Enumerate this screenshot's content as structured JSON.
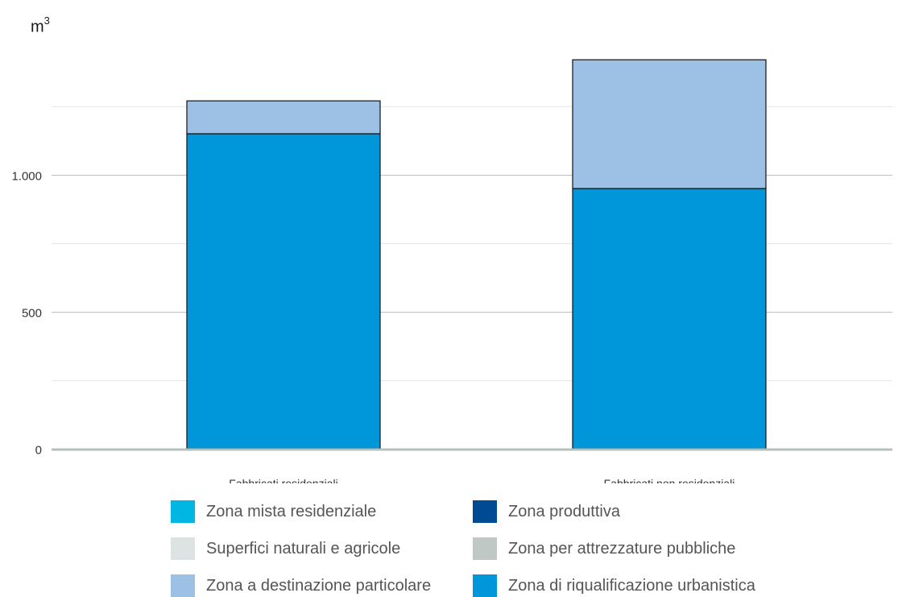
{
  "unit": {
    "base": "m",
    "exponent": "3"
  },
  "chart_data": {
    "type": "bar",
    "stacked": true,
    "title": "",
    "xlabel": "",
    "ylabel": "m3",
    "ylim": [
      0,
      1500
    ],
    "yticks": [
      0,
      500,
      1000
    ],
    "ytick_labels": [
      "0",
      "500",
      "1.000"
    ],
    "minor_gridlines": [
      250,
      750,
      1250
    ],
    "grid": true,
    "legend_position": "bottom",
    "categories": [
      "Fabbricati residenziali",
      "Fabbricati non residenziali"
    ],
    "series": [
      {
        "name": "Zona mista residenziale",
        "color": "#00b7e4",
        "values": [
          0,
          0
        ]
      },
      {
        "name": "Zona produttiva",
        "color": "#004a93",
        "values": [
          0,
          0
        ]
      },
      {
        "name": "Superfici naturali e agricole",
        "color": "#dde2e2",
        "values": [
          0,
          0
        ]
      },
      {
        "name": "Zona per attrezzature pubbliche",
        "color": "#bfc8c4",
        "values": [
          0,
          0
        ]
      },
      {
        "name": "Zona a destinazione particolare",
        "color": "#9dc1e5",
        "values": [
          120,
          470
        ]
      },
      {
        "name": "Zona di riqualificazione urbanistica",
        "color": "#0096da",
        "values": [
          1150,
          950
        ]
      }
    ],
    "stack_order": [
      "Zona di riqualificazione urbanistica",
      "Zona a destinazione particolare",
      "Zona per attrezzature pubbliche",
      "Superfici naturali e agricole",
      "Zona produttiva",
      "Zona mista residenziale"
    ]
  }
}
